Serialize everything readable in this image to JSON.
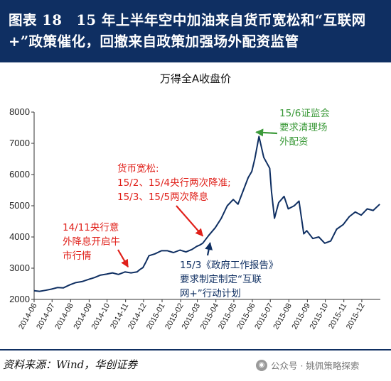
{
  "header": {
    "title": "图表 18　15 年上半年空中加油来自货币宽松和“互联网+”政策催化，回撤来自政策加强场外配资监管"
  },
  "chart_data": {
    "type": "line",
    "title": "万得全A收盘价",
    "xlabel": "",
    "ylabel": "",
    "ylim": [
      2000,
      8000
    ],
    "yticks": [
      2000,
      3000,
      4000,
      5000,
      6000,
      7000,
      8000
    ],
    "xticks": [
      "2014-06",
      "2014-07",
      "2014-08",
      "2014-09",
      "2014-10",
      "2014-11",
      "2014-12",
      "2015-01",
      "2015-02",
      "2015-03",
      "2015-04",
      "2015-05",
      "2015-06",
      "2015-07",
      "2015-08",
      "2015-09",
      "2015-10",
      "2015-11",
      "2015-12"
    ],
    "grid": false,
    "series": [
      {
        "color": "#0f2f62",
        "points": [
          [
            "2014-06-01",
            2280
          ],
          [
            "2014-06-10",
            2260
          ],
          [
            "2014-06-20",
            2290
          ],
          [
            "2014-06-30",
            2330
          ],
          [
            "2014-07-10",
            2380
          ],
          [
            "2014-07-20",
            2370
          ],
          [
            "2014-07-31",
            2470
          ],
          [
            "2014-08-10",
            2540
          ],
          [
            "2014-08-20",
            2570
          ],
          [
            "2014-08-31",
            2640
          ],
          [
            "2014-09-10",
            2700
          ],
          [
            "2014-09-20",
            2780
          ],
          [
            "2014-09-30",
            2810
          ],
          [
            "2014-10-10",
            2850
          ],
          [
            "2014-10-20",
            2800
          ],
          [
            "2014-10-31",
            2880
          ],
          [
            "2014-11-10",
            2850
          ],
          [
            "2014-11-20",
            2880
          ],
          [
            "2014-11-25",
            2960
          ],
          [
            "2014-11-30",
            3020
          ],
          [
            "2014-12-05",
            3200
          ],
          [
            "2014-12-10",
            3400
          ],
          [
            "2014-12-20",
            3460
          ],
          [
            "2014-12-31",
            3560
          ],
          [
            "2015-01-10",
            3560
          ],
          [
            "2015-01-20",
            3500
          ],
          [
            "2015-01-31",
            3580
          ],
          [
            "2015-02-10",
            3520
          ],
          [
            "2015-02-20",
            3600
          ],
          [
            "2015-02-28",
            3700
          ],
          [
            "2015-03-05",
            3740
          ],
          [
            "2015-03-10",
            3800
          ],
          [
            "2015-03-20",
            4050
          ],
          [
            "2015-03-31",
            4300
          ],
          [
            "2015-04-10",
            4600
          ],
          [
            "2015-04-20",
            5000
          ],
          [
            "2015-04-30",
            5200
          ],
          [
            "2015-05-08",
            5050
          ],
          [
            "2015-05-15",
            5400
          ],
          [
            "2015-05-25",
            5900
          ],
          [
            "2015-05-31",
            6100
          ],
          [
            "2015-06-05",
            6500
          ],
          [
            "2015-06-12",
            7220
          ],
          [
            "2015-06-20",
            6550
          ],
          [
            "2015-06-30",
            6200
          ],
          [
            "2015-07-03",
            5450
          ],
          [
            "2015-07-08",
            4600
          ],
          [
            "2015-07-15",
            5100
          ],
          [
            "2015-07-24",
            5300
          ],
          [
            "2015-07-31",
            4900
          ],
          [
            "2015-08-10",
            5000
          ],
          [
            "2015-08-18",
            5150
          ],
          [
            "2015-08-26",
            4100
          ],
          [
            "2015-08-31",
            4200
          ],
          [
            "2015-09-10",
            3950
          ],
          [
            "2015-09-20",
            4000
          ],
          [
            "2015-09-30",
            3800
          ],
          [
            "2015-10-10",
            3870
          ],
          [
            "2015-10-20",
            4250
          ],
          [
            "2015-10-31",
            4400
          ],
          [
            "2015-11-10",
            4650
          ],
          [
            "2015-11-20",
            4800
          ],
          [
            "2015-11-30",
            4700
          ],
          [
            "2015-12-10",
            4900
          ],
          [
            "2015-12-20",
            4850
          ],
          [
            "2015-12-31",
            5050
          ]
        ]
      }
    ],
    "annotations": [
      {
        "lines": [
          "15/6证监会",
          "要求清理场",
          "外配资"
        ],
        "color": "#3c9a3a",
        "points_to": [
          "2015-06-12",
          7220
        ]
      },
      {
        "lines": [
          "货币宽松:",
          "15/2、15/4央行两次降准;",
          "15/3、15/5两次降息"
        ],
        "color": "#e0201a",
        "points_to": [
          "2015-03-10",
          3850
        ]
      },
      {
        "lines": [
          "14/11央行意",
          "外降息开启牛",
          "市行情"
        ],
        "color": "#e0201a",
        "points_to": [
          "2014-11-05",
          2860
        ]
      },
      {
        "lines": [
          "15/3《政府工作报告》",
          "要求制定制定“互联",
          "网+”行动计划"
        ],
        "color": "#0f2f62",
        "points_to": [
          "2015-03-20",
          3950
        ]
      }
    ]
  },
  "footer": {
    "source": "资料来源：Wind，华创证券",
    "watermark": "公众号 · 姚佩策略探索"
  }
}
